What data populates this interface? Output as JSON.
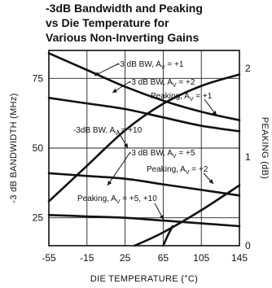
{
  "chart_data": {
    "type": "line",
    "title_lines": [
      "-3dB Bandwidth and Peaking",
      "vs Die Temperature for",
      "Various Non-Inverting Gains"
    ],
    "xlabel": "DIE TEMPERATURE (°C)",
    "ylabel_left": "-3 dB BANDWIDTH (MHz)",
    "ylabel_right": "PEAKING (dB)",
    "xlim": [
      -55,
      145
    ],
    "x_ticks": [
      -55,
      -15,
      25,
      65,
      105,
      145
    ],
    "ylim_left": [
      15,
      85
    ],
    "y_ticks_left": [
      25,
      50,
      75
    ],
    "ylim_right": [
      0,
      2.2
    ],
    "y_ticks_right": [
      0,
      1,
      2
    ],
    "grid": true,
    "series": [
      {
        "name": "-3 dB BW, Av = +1",
        "axis": "left",
        "x": [
          -55,
          -15,
          25,
          65,
          105,
          145
        ],
        "y": [
          84,
          78,
          72,
          67,
          63,
          60
        ]
      },
      {
        "name": "-3 dB BW, Av = +2",
        "axis": "left",
        "x": [
          -55,
          -15,
          25,
          65,
          105,
          145
        ],
        "y": [
          68,
          66,
          64,
          61,
          58,
          56
        ]
      },
      {
        "name": "-3 dB BW, Av = +10",
        "axis": "left",
        "x": [
          -55,
          -15,
          25,
          65,
          105,
          145
        ],
        "y": [
          41,
          40,
          39,
          37,
          35,
          33
        ]
      },
      {
        "name": "-3 dB BW, Av = +5",
        "axis": "left",
        "x": [
          -55,
          -15,
          25,
          65,
          105,
          145
        ],
        "y": [
          26,
          25.5,
          25,
          24,
          23,
          22
        ]
      },
      {
        "name": "Peaking, Av = +1",
        "axis": "right",
        "x": [
          -55,
          -15,
          25,
          65,
          105,
          145
        ],
        "y": [
          0.5,
          0.9,
          1.3,
          1.6,
          1.8,
          1.93
        ]
      },
      {
        "name": "Peaking, Av = +2",
        "axis": "right",
        "x": [
          35,
          65,
          105,
          145
        ],
        "y": [
          0,
          0.15,
          0.4,
          0.68
        ]
      },
      {
        "name": "Peaking, Av = +5, +10",
        "axis": "right",
        "x": [
          65,
          70,
          75
        ],
        "y": [
          0,
          0.12,
          0.22
        ]
      }
    ],
    "annotations": [
      {
        "text": "-3 dB BW, A",
        "sub": "V",
        "tail": " = +1"
      },
      {
        "text": "-3 dB BW, A",
        "sub": "V",
        "tail": " = +2"
      },
      {
        "text": "Peaking, A",
        "sub": "V",
        "tail": " = +1"
      },
      {
        "text": "-3dB BW, A",
        "sub": "V",
        "tail": " = +10"
      },
      {
        "text": "-3 dB BW, A",
        "sub": "V",
        "tail": " = +5"
      },
      {
        "text": "Peaking, A",
        "sub": "V",
        "tail": " = +2"
      },
      {
        "text": "Peaking, A",
        "sub": "V",
        "tail": " = +5, +10"
      }
    ]
  }
}
